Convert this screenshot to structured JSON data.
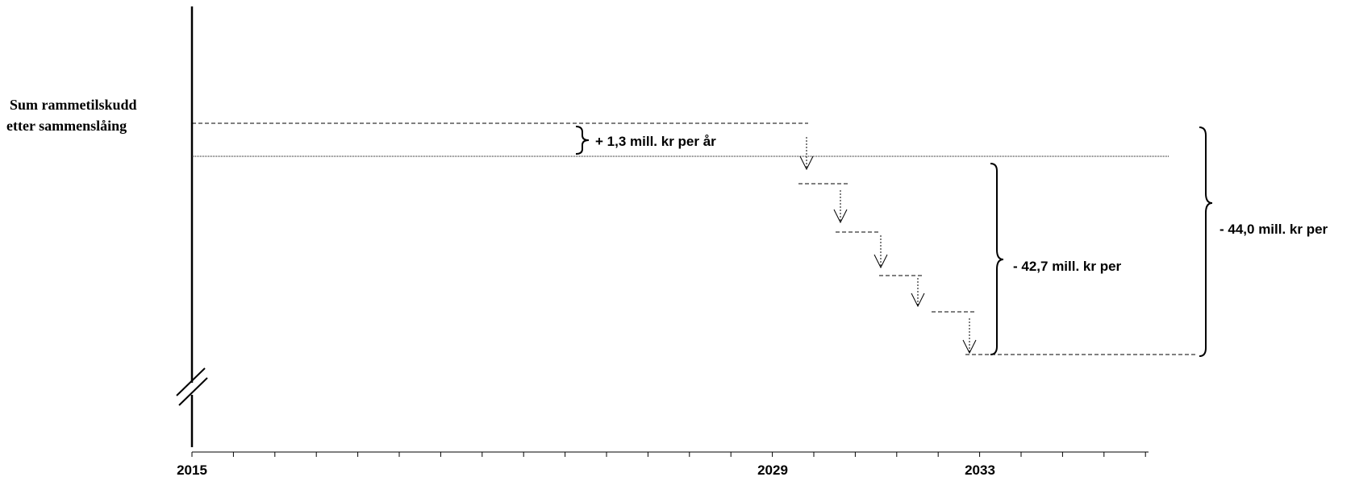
{
  "labels": {
    "y_label_line1": "Sum rammetilskudd",
    "y_label_line2": "etter sammenslåing",
    "increase": "+ 1,3 mill. kr per år",
    "decrease_partial": "- 42,7 mill. kr per",
    "decrease_total": "- 44,0 mill. kr per"
  },
  "axis": {
    "tick_labels": [
      "2015",
      "2029",
      "2033"
    ]
  },
  "colors": {
    "ink": "#000000",
    "background": "#ffffff"
  }
}
